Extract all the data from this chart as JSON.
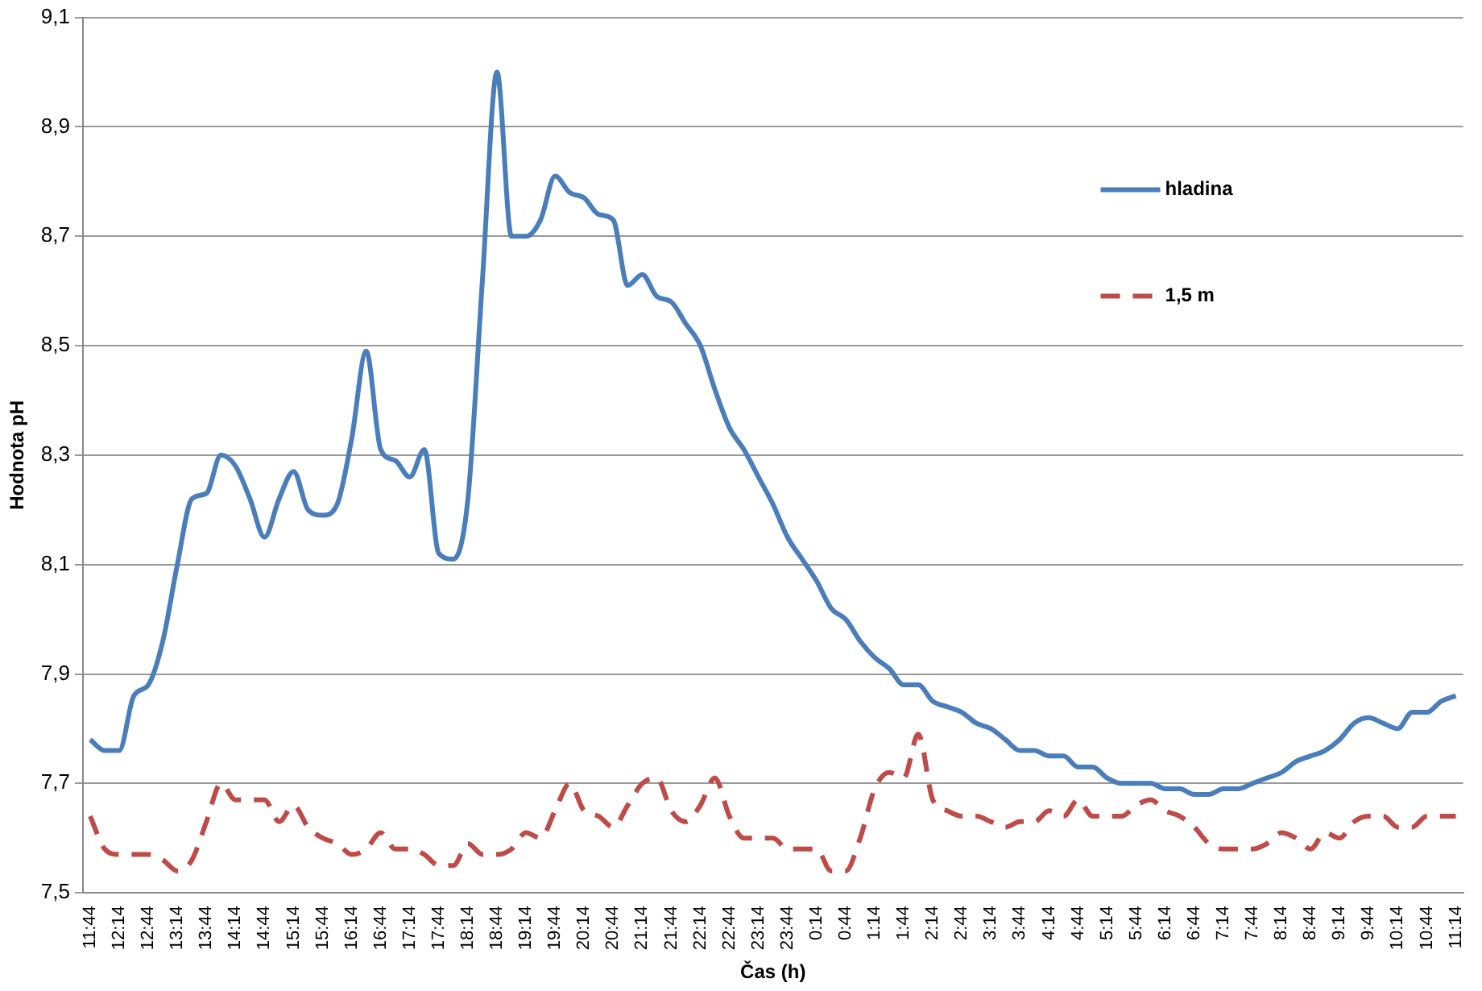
{
  "chart_data": {
    "type": "line",
    "xlabel": "Čas (h)",
    "ylabel": "Hodnota pH",
    "categories": [
      "11:44",
      null,
      "12:14",
      null,
      "12:44",
      null,
      "13:14",
      null,
      "13:44",
      null,
      "14:14",
      null,
      "14:44",
      null,
      "15:14",
      null,
      "15:44",
      null,
      "16:14",
      null,
      "16:44",
      null,
      "17:14",
      null,
      "17:44",
      null,
      "18:14",
      null,
      "18:44",
      null,
      "19:14",
      null,
      "19:44",
      null,
      "20:14",
      null,
      "20:44",
      null,
      "21:14",
      null,
      "21:44",
      null,
      "22:14",
      null,
      "22:44",
      null,
      "23:14",
      null,
      "23:44",
      null,
      "0:14",
      null,
      "0:44",
      null,
      "1:14",
      null,
      "1:44",
      null,
      "2:14",
      null,
      "2:44",
      null,
      "3:14",
      null,
      "3:44",
      null,
      "4:14",
      null,
      "4:44",
      null,
      "5:14",
      null,
      "5:44",
      null,
      "6:14",
      null,
      "6:44",
      null,
      "7:14",
      null,
      "7:44",
      null,
      "8:14",
      null,
      "8:44",
      null,
      "9:14",
      null,
      "9:44",
      null,
      "10:14",
      null,
      "10:44",
      null,
      "11:14"
    ],
    "series": [
      {
        "name": "hladina",
        "color": "#4a7ebb",
        "line_style": "solid",
        "values": [
          7.78,
          7.76,
          7.76,
          7.86,
          7.88,
          7.96,
          8.1,
          8.22,
          8.23,
          8.3,
          8.28,
          8.22,
          8.15,
          8.22,
          8.27,
          8.2,
          8.19,
          8.21,
          8.33,
          8.49,
          8.31,
          8.29,
          8.26,
          8.31,
          8.12,
          8.11,
          8.22,
          8.62,
          9.0,
          8.7,
          8.7,
          8.73,
          8.81,
          8.78,
          8.77,
          8.74,
          8.73,
          8.61,
          8.63,
          8.59,
          8.58,
          8.54,
          8.5,
          8.42,
          8.35,
          8.31,
          8.26,
          8.21,
          8.15,
          8.11,
          8.07,
          8.02,
          8.0,
          7.96,
          7.93,
          7.91,
          7.88,
          7.88,
          7.85,
          7.84,
          7.83,
          7.81,
          7.8,
          7.78,
          7.76,
          7.76,
          7.75,
          7.75,
          7.73,
          7.73,
          7.71,
          7.7,
          7.7,
          7.7,
          7.69,
          7.69,
          7.68,
          7.68,
          7.69,
          7.69,
          7.7,
          7.71,
          7.72,
          7.74,
          7.75,
          7.76,
          7.78,
          7.81,
          7.82,
          7.81,
          7.8,
          7.83,
          7.83,
          7.85,
          7.86
        ]
      },
      {
        "name": "1,5 m",
        "color": "#be4b48",
        "line_style": "dashed",
        "values": [
          7.64,
          7.58,
          7.57,
          7.57,
          7.57,
          7.56,
          7.54,
          7.56,
          7.63,
          7.7,
          7.67,
          7.67,
          7.67,
          7.63,
          7.66,
          7.62,
          7.6,
          7.59,
          7.57,
          7.58,
          7.61,
          7.58,
          7.58,
          7.57,
          7.55,
          7.55,
          7.59,
          7.57,
          7.57,
          7.58,
          7.61,
          7.6,
          7.65,
          7.7,
          7.65,
          7.64,
          7.62,
          7.66,
          7.7,
          7.71,
          7.65,
          7.63,
          7.66,
          7.71,
          7.64,
          7.6,
          7.6,
          7.6,
          7.58,
          7.58,
          7.58,
          7.54,
          7.54,
          7.6,
          7.69,
          7.72,
          7.71,
          7.79,
          7.67,
          7.65,
          7.64,
          7.64,
          7.63,
          7.62,
          7.63,
          7.63,
          7.65,
          7.64,
          7.67,
          7.64,
          7.64,
          7.64,
          7.66,
          7.67,
          7.65,
          7.64,
          7.62,
          7.59,
          7.58,
          7.58,
          7.58,
          7.59,
          7.61,
          7.6,
          7.58,
          7.61,
          7.6,
          7.63,
          7.64,
          7.64,
          7.62,
          7.62,
          7.64,
          7.64,
          7.64
        ]
      }
    ],
    "ylim": [
      7.5,
      9.1
    ],
    "yticks": [
      {
        "value": 7.5,
        "label": "7,5"
      },
      {
        "value": 7.7,
        "label": "7,7"
      },
      {
        "value": 7.9,
        "label": "7,9"
      },
      {
        "value": 8.1,
        "label": "8,1"
      },
      {
        "value": 8.3,
        "label": "8,3"
      },
      {
        "value": 8.5,
        "label": "8,5"
      },
      {
        "value": 8.7,
        "label": "8,7"
      },
      {
        "value": 8.9,
        "label": "8,9"
      },
      {
        "value": 9.1,
        "label": "9,1"
      }
    ],
    "grid": "y",
    "legend": "top right",
    "marker": "none"
  }
}
